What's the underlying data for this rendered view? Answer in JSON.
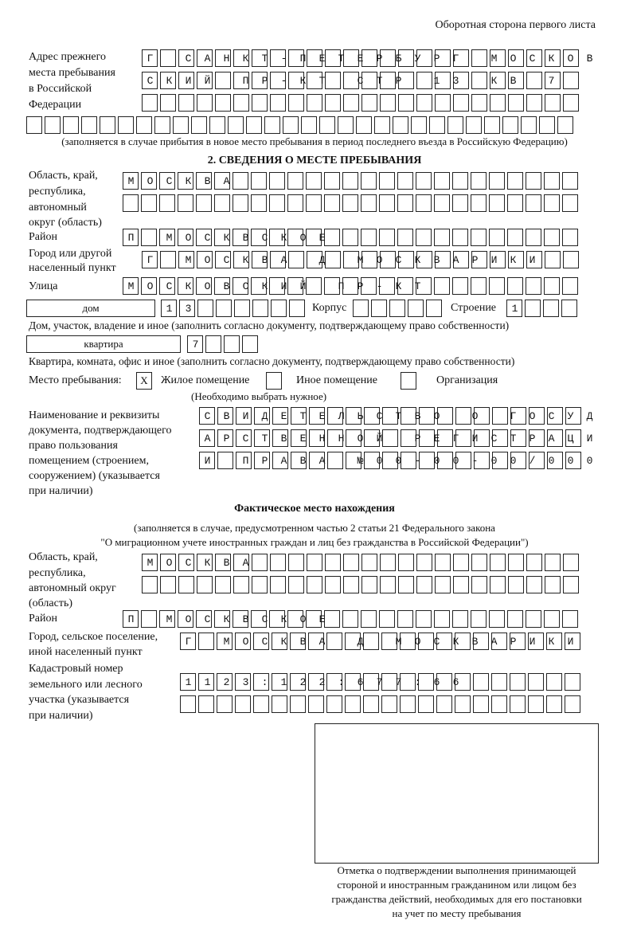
{
  "header": "Оборотная сторона первого листа",
  "prev_address": {
    "label": [
      "Адрес прежнего",
      "места пребывания",
      "в Российской",
      "Федерации"
    ],
    "rows": [
      "Г САНКТ-ПЕТЕРБУРГ МОСКОВ",
      "СКИЙ ПР-КТ СТР 13 КВ 7  ",
      "                        ",
      "                              "
    ],
    "note": "(заполняется в случае прибытия в новое место пребывания в период последнего въезда в Российскую Федерацию)"
  },
  "section2": {
    "title": "2. СВЕДЕНИЯ О МЕСТЕ ПРЕБЫВАНИЯ",
    "region_label": [
      "Область, край,",
      "республика,",
      "автономный",
      "округ (область)"
    ],
    "region_rows": [
      "МОСКВА                   ",
      "                         "
    ],
    "district_label": "Район",
    "district_row": "П МОСКВСКОЕ              ",
    "city_label": [
      "Город или другой",
      "населенный пункт"
    ],
    "city_row": "Г МОСКВА Д МОСКВАРИКИ   ",
    "street_label": "Улица",
    "street_row": "МОСКОВСКИЙ ПР-КТ         ",
    "house_type": "дом",
    "house_row": "13      ",
    "korpus_label": "Корпус",
    "korpus_row": "     ",
    "building_label": "Строение",
    "building_row": "1   ",
    "house_note": "Дом, участок, владение и иное (заполнить согласно документу, подтверждающему право собственности)",
    "apt_type": "квартира",
    "apt_row": "7   ",
    "apt_note": "Квартира, комната, офис и иное (заполнить согласно документу, подтверждающему право собственности)",
    "stay_label": "Место пребывания:",
    "stay_options": [
      {
        "label": "Жилое помещение",
        "mark": "X"
      },
      {
        "label": "Иное помещение",
        "mark": ""
      },
      {
        "label": "Организация",
        "mark": ""
      }
    ],
    "stay_note": "(Необходимо выбрать нужное)",
    "doc_label": [
      "Наименование и реквизиты",
      "документа, подтверждающего",
      "право пользования",
      "помещением (строением,",
      "сооружением) (указывается",
      "при наличии)"
    ],
    "doc_rows": [
      "СВИДЕТЕЛЬСТВО О ГОСУД",
      "АРСТВЕННОЙ РЕГИСТРАЦИ",
      "И ПРАВА №00-00-00/000"
    ]
  },
  "actual": {
    "title": "Фактическое место нахождения",
    "note": [
      "(заполняется в случае, предусмотренном частью 2 статьи 21 Федерального закона",
      "\"О миграционном учете иностранных граждан и лиц без гражданства в Российской Федерации\")"
    ],
    "region_label": [
      "Область, край,",
      "республика,",
      "автономный округ",
      "(область)"
    ],
    "region_rows": [
      "МОСКВА                  ",
      "                        "
    ],
    "district_label": "Район",
    "district_row": "П МОСКВСКОЕ              ",
    "city_label": [
      "Город, сельское поселение,",
      "иной населенный пункт"
    ],
    "city_row": "Г МОСКВА Д МОСКВАРИКИ ",
    "cadastre_label": [
      "Кадастровый номер",
      "земельного или лесного",
      "участка (указывается",
      "при наличии)"
    ],
    "cadastre_rows": [
      "1123:122:677:66       ",
      "                      "
    ]
  },
  "signature_caption": [
    "Отметка о подтверждении выполнения принимающей",
    "стороной и иностранным гражданином или лицом без",
    "гражданства действий, необходимых для его постановки",
    "на учет по месту пребывания"
  ]
}
